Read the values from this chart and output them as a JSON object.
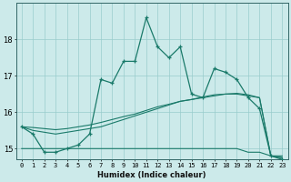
{
  "xlabel": "Humidex (Indice chaleur)",
  "x": [
    0,
    1,
    2,
    3,
    4,
    5,
    6,
    7,
    8,
    9,
    10,
    11,
    12,
    13,
    14,
    15,
    16,
    17,
    18,
    19,
    20,
    21,
    22,
    23
  ],
  "line_main": [
    15.6,
    15.4,
    14.9,
    14.9,
    15.0,
    15.1,
    15.4,
    16.9,
    16.8,
    17.4,
    17.4,
    18.6,
    17.8,
    17.5,
    17.8,
    16.5,
    16.4,
    17.2,
    17.1,
    16.9,
    16.4,
    16.1,
    14.8,
    14.7
  ],
  "line_flat": [
    15.0,
    15.0,
    15.0,
    15.0,
    15.0,
    15.0,
    15.0,
    15.0,
    15.0,
    15.0,
    15.0,
    15.0,
    15.0,
    15.0,
    15.0,
    15.0,
    15.0,
    15.0,
    15.0,
    15.0,
    14.9,
    14.9,
    14.8,
    14.8
  ],
  "line_rise1": [
    15.6,
    15.5,
    15.45,
    15.4,
    15.45,
    15.5,
    15.55,
    15.6,
    15.7,
    15.8,
    15.9,
    16.0,
    16.1,
    16.2,
    16.3,
    16.35,
    16.4,
    16.45,
    16.5,
    16.5,
    16.45,
    16.4,
    14.8,
    14.75
  ],
  "line_rise2": [
    15.6,
    15.58,
    15.55,
    15.52,
    15.55,
    15.6,
    15.65,
    15.72,
    15.8,
    15.88,
    15.95,
    16.05,
    16.15,
    16.22,
    16.3,
    16.35,
    16.42,
    16.48,
    16.5,
    16.52,
    16.48,
    16.4,
    14.8,
    14.75
  ],
  "bg_color": "#cceaea",
  "line_color": "#1a7a6a",
  "grid_color": "#99cccc",
  "ylim": [
    14.7,
    19.0
  ],
  "yticks": [
    15,
    16,
    17,
    18
  ],
  "xlim": [
    -0.5,
    23.5
  ]
}
